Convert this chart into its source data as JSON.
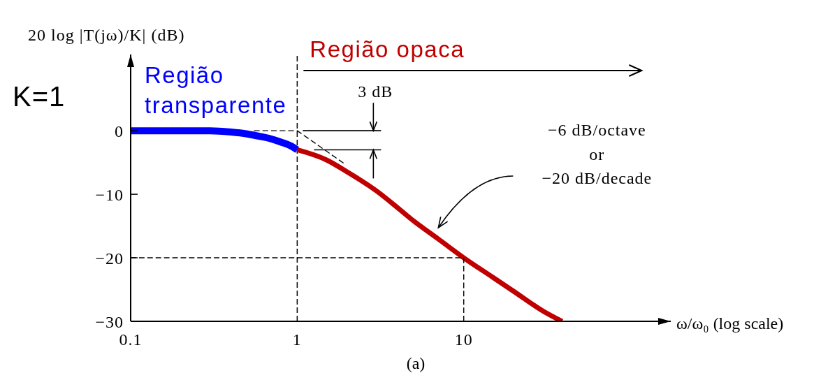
{
  "chart_data": {
    "type": "line",
    "xlabel": "ω/ω₀ (log scale)",
    "ylabel": "20 log |T(jω)/K| (dB)",
    "log": "x",
    "xlim": [
      0.1,
      175
    ],
    "xticks": [
      0.1,
      1,
      10
    ],
    "ylim": [
      -30,
      12
    ],
    "yticks": [
      {
        "value": -30,
        "label": "−30"
      },
      {
        "value": -20,
        "label": "−20"
      },
      {
        "value": -10,
        "label": "−10"
      },
      0
    ],
    "series": [
      {
        "name": "Região transparente",
        "color": "#0000ff",
        "x": [
          0.1,
          0.2,
          0.3,
          0.4,
          0.5,
          0.6,
          0.7,
          0.8,
          0.9,
          1
        ],
        "values": [
          0,
          0,
          0,
          -0.2,
          -0.5,
          -0.9,
          -1.3,
          -1.8,
          -2.3,
          -3
        ]
      },
      {
        "name": "Região opaca",
        "color": "#c00000",
        "x": [
          1,
          1.5,
          2,
          3,
          4,
          5,
          7,
          10,
          15,
          20,
          30,
          39
        ],
        "values": [
          -3,
          -4.6,
          -6.5,
          -9.5,
          -12.1,
          -14.2,
          -17,
          -20,
          -23.1,
          -25.3,
          -28.4,
          -30
        ]
      },
      {
        "color": "#000000",
        "line_style": "dashed",
        "x": [
          0.55,
          1,
          1.9
        ],
        "values": [
          0,
          0,
          -5.1
        ]
      },
      {
        "color": "#000000",
        "line_style": "dashed",
        "x": [
          0.1,
          10,
          10
        ],
        "values": [
          -20,
          -20,
          -30
        ]
      }
    ],
    "ref_lines": [
      {
        "axis": "x",
        "value": 1,
        "color": "#000000",
        "line_style": "dashed"
      }
    ],
    "annotations": [
      "K=1",
      "3 dB",
      "−6 dB/octave\nor\n−20 dB/decade",
      "(a)"
    ]
  }
}
